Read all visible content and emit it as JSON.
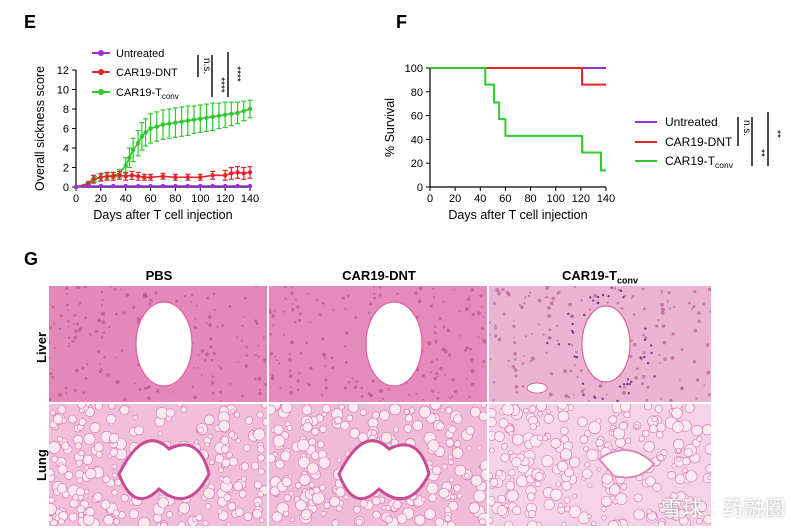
{
  "panels": {
    "E": "E",
    "F": "F",
    "G": "G"
  },
  "chart_data": [
    {
      "type": "line",
      "panel": "E",
      "xlabel": "Days after T cell injection",
      "ylabel": "Overall sickness score",
      "xlim": [
        0,
        140
      ],
      "ylim": [
        0,
        12
      ],
      "xticks": [
        0,
        20,
        40,
        60,
        80,
        100,
        120,
        140
      ],
      "yticks": [
        0,
        2,
        4,
        6,
        8,
        10,
        12
      ],
      "legend_placement": "top-left",
      "series": [
        {
          "name": "Untreated",
          "color": "#9b30d9",
          "x": [
            0,
            10,
            20,
            30,
            40,
            50,
            60,
            70,
            80,
            90,
            100,
            110,
            120,
            130,
            140
          ],
          "y": [
            0,
            0.1,
            0.1,
            0.1,
            0.1,
            0.1,
            0.1,
            0.1,
            0.1,
            0.1,
            0.1,
            0.1,
            0.1,
            0.1,
            0.1
          ]
        },
        {
          "name": "CAR19-DNT",
          "color": "#e3242b",
          "x": [
            0,
            10,
            14,
            20,
            25,
            30,
            35,
            40,
            45,
            50,
            55,
            60,
            70,
            80,
            90,
            100,
            110,
            120,
            125,
            130,
            135,
            140
          ],
          "y": [
            0,
            0.3,
            0.8,
            1.0,
            1.1,
            1.1,
            1.2,
            1.1,
            1.2,
            1.1,
            1.0,
            1.0,
            1.1,
            1.0,
            1.0,
            1.0,
            1.2,
            1.2,
            1.4,
            1.5,
            1.4,
            1.5
          ],
          "err": [
            0,
            0.2,
            0.4,
            0.4,
            0.4,
            0.4,
            0.4,
            0.4,
            0.4,
            0.4,
            0.3,
            0.3,
            0.3,
            0.3,
            0.3,
            0.3,
            0.4,
            0.5,
            0.6,
            0.6,
            0.6,
            0.6
          ]
        },
        {
          "name": "CAR19-T",
          "subscript": "conv",
          "color": "#2ec92e",
          "x": [
            0,
            10,
            15,
            20,
            25,
            30,
            35,
            40,
            43,
            46,
            50,
            53,
            56,
            60,
            65,
            70,
            75,
            80,
            85,
            90,
            95,
            100,
            105,
            110,
            115,
            120,
            125,
            130,
            135,
            140
          ],
          "y": [
            0,
            0.4,
            0.8,
            1.0,
            1.1,
            1.2,
            1.4,
            2.2,
            3.0,
            3.8,
            4.5,
            5.2,
            5.6,
            6.0,
            6.2,
            6.4,
            6.5,
            6.6,
            6.7,
            6.8,
            6.9,
            7.0,
            7.1,
            7.2,
            7.3,
            7.4,
            7.5,
            7.6,
            7.8,
            8.0
          ],
          "err": [
            0,
            0.2,
            0.3,
            0.3,
            0.3,
            0.3,
            0.4,
            0.8,
            1.0,
            1.2,
            1.3,
            1.4,
            1.4,
            1.5,
            1.5,
            1.5,
            1.5,
            1.5,
            1.5,
            1.5,
            1.4,
            1.4,
            1.4,
            1.4,
            1.3,
            1.3,
            1.2,
            1.1,
            1.0,
            0.9
          ]
        }
      ],
      "significance": [
        {
          "label": "n.s."
        },
        {
          "label": "****"
        },
        {
          "label": "****"
        }
      ]
    },
    {
      "type": "line",
      "panel": "F",
      "xlabel": "Days after T cell injection",
      "ylabel": "% Survival",
      "xlim": [
        0,
        140
      ],
      "ylim": [
        0,
        100
      ],
      "xticks": [
        0,
        20,
        40,
        60,
        80,
        100,
        120,
        140
      ],
      "yticks": [
        0,
        20,
        40,
        60,
        80,
        100
      ],
      "legend_placement": "right",
      "series": [
        {
          "name": "Untreated",
          "color": "#9b30d9",
          "steps": [
            [
              0,
              100
            ],
            [
              140,
              100
            ]
          ]
        },
        {
          "name": "CAR19-DNT",
          "color": "#e3242b",
          "steps": [
            [
              0,
              100
            ],
            [
              121,
              100
            ],
            [
              121,
              86
            ],
            [
              140,
              86
            ]
          ]
        },
        {
          "name": "CAR19-T",
          "subscript": "conv",
          "color": "#2ec92e",
          "steps": [
            [
              0,
              100
            ],
            [
              44,
              100
            ],
            [
              44,
              86
            ],
            [
              51,
              86
            ],
            [
              51,
              71
            ],
            [
              55,
              71
            ],
            [
              55,
              57
            ],
            [
              60,
              57
            ],
            [
              60,
              43
            ],
            [
              121,
              43
            ],
            [
              121,
              29
            ],
            [
              136,
              29
            ],
            [
              136,
              14
            ],
            [
              140,
              14
            ]
          ]
        }
      ],
      "significance": [
        {
          "label": "n.s."
        },
        {
          "label": "**"
        },
        {
          "label": "**"
        }
      ]
    }
  ],
  "histology": {
    "columns": [
      {
        "label": "PBS"
      },
      {
        "label": "CAR19-DNT"
      },
      {
        "label": "CAR19-T",
        "subscript": "conv"
      }
    ],
    "rows": [
      {
        "label": "Liver"
      },
      {
        "label": "Lung"
      }
    ]
  },
  "watermark": "雪球 : 药融圈",
  "colors": {
    "untreated": "#9b30d9",
    "dnt": "#e3242b",
    "tconv": "#2ec92e",
    "tissue": "#e79ac6"
  }
}
